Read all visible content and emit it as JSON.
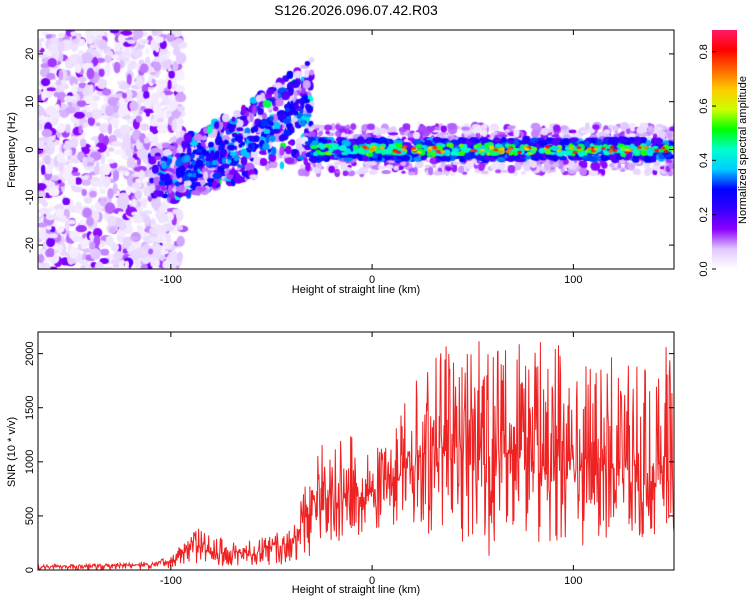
{
  "title": "S126.2026.096.07.42.R03",
  "chart_data": [
    {
      "type": "heatmap",
      "title": "S126.2026.096.07.42.R03",
      "xlabel": "Height of straight line (km)",
      "ylabel": "Frequency (Hz)",
      "xlim": [
        -166,
        150
      ],
      "ylim": [
        -25,
        25
      ],
      "xticks": [
        -100,
        0,
        100
      ],
      "yticks": [
        -20,
        -10,
        0,
        10,
        20
      ],
      "colorbar": {
        "label": "Normalized spectral amplitude",
        "range": [
          0,
          0.88
        ],
        "ticks": [
          0.0,
          0.2,
          0.4,
          0.6,
          0.8
        ],
        "colors": [
          "#ffffff",
          "#e0c8ff",
          "#8b00ff",
          "#3300ff",
          "#0000ff",
          "#00ccff",
          "#00ffcc",
          "#00ff00",
          "#ccff00",
          "#ffcc00",
          "#ff6600",
          "#ff0000",
          "#ff1a66"
        ]
      },
      "features": [
        {
          "region": "noise",
          "x_range": [
            -166,
            -100
          ],
          "freq_range": [
            -25,
            25
          ],
          "amplitude": 0.08
        },
        {
          "region": "rising chirp",
          "x_range": [
            -110,
            -30
          ],
          "freq_start": -5,
          "freq_end": 9,
          "amplitude": 0.25
        },
        {
          "region": "steady tone",
          "x_range": [
            -35,
            150
          ],
          "freq": 0,
          "amplitude": 0.7
        }
      ],
      "grid": false
    },
    {
      "type": "line",
      "xlabel": "Height of straight line (km)",
      "ylabel": "SNR (10 * v/v)",
      "xlim": [
        -166,
        150
      ],
      "ylim": [
        0,
        2200
      ],
      "xticks": [
        -100,
        0,
        100
      ],
      "yticks": [
        0,
        500,
        1000,
        1500,
        2000
      ],
      "series": [
        {
          "name": "SNR",
          "color": "#ee2222",
          "x": [
            -166,
            -150,
            -130,
            -110,
            -100,
            -90,
            -85,
            -80,
            -70,
            -60,
            -50,
            -40,
            -30,
            -25,
            -20,
            -10,
            0,
            10,
            20,
            30,
            40,
            50,
            60,
            70,
            80,
            90,
            100,
            110,
            120,
            130,
            140,
            150
          ],
          "values": [
            30,
            30,
            40,
            50,
            80,
            200,
            220,
            150,
            180,
            140,
            220,
            240,
            600,
            700,
            650,
            650,
            700,
            800,
            1000,
            1150,
            1050,
            1000,
            1050,
            1100,
            1000,
            950,
            950,
            1000,
            1000,
            950,
            950,
            1050
          ],
          "envelope_max": [
            50,
            50,
            60,
            80,
            120,
            380,
            400,
            300,
            300,
            280,
            350,
            380,
            1100,
            1200,
            1150,
            1250,
            1300,
            1500,
            1800,
            2000,
            2150,
            2200,
            2200,
            2200,
            2100,
            2150,
            2050,
            2000,
            2000,
            1900,
            2000,
            2150
          ],
          "envelope_min": [
            0,
            0,
            0,
            5,
            10,
            50,
            60,
            40,
            40,
            40,
            40,
            50,
            100,
            250,
            250,
            300,
            350,
            400,
            400,
            300,
            300,
            200,
            100,
            250,
            200,
            200,
            250,
            200,
            350,
            300,
            300,
            350
          ]
        }
      ],
      "grid": false
    }
  ]
}
